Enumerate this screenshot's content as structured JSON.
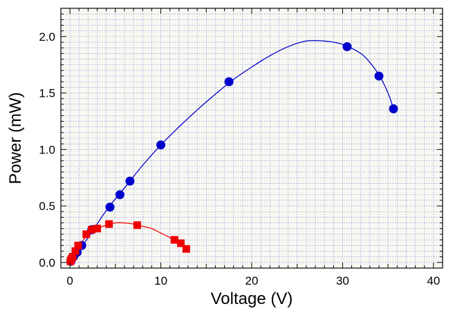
{
  "chart_data": {
    "type": "scatter",
    "title": "",
    "xlabel": "Voltage (V)",
    "ylabel": "Power (mW)",
    "xlim": [
      -1,
      41
    ],
    "ylim": [
      -0.05,
      2.25
    ],
    "xticks": [
      0,
      10,
      20,
      30,
      40
    ],
    "xtick_labels": [
      "0",
      "10",
      "20",
      "30",
      "40"
    ],
    "yticks": [
      0.0,
      0.5,
      1.0,
      1.5,
      2.0
    ],
    "ytick_labels": [
      "0.0",
      "0.5",
      "1.0",
      "1.5",
      "2.0"
    ],
    "grid": true,
    "minor_x_step": 1,
    "minor_y_step": 0.05,
    "series": [
      {
        "marker": "circle",
        "color": "#0000cc",
        "points": [
          [
            0.1,
            0.01
          ],
          [
            0.2,
            0.03
          ],
          [
            0.4,
            0.05
          ],
          [
            0.8,
            0.09
          ],
          [
            1.3,
            0.15
          ],
          [
            2.4,
            0.29
          ],
          [
            4.4,
            0.49
          ],
          [
            5.5,
            0.6
          ],
          [
            6.6,
            0.72
          ],
          [
            10.0,
            1.04
          ],
          [
            17.5,
            1.6
          ],
          [
            30.5,
            1.91
          ],
          [
            34.0,
            1.65
          ],
          [
            35.6,
            1.36
          ]
        ],
        "fit_curve": [
          [
            0,
            0
          ],
          [
            2,
            0.22
          ],
          [
            4,
            0.46
          ],
          [
            6,
            0.66
          ],
          [
            8,
            0.86
          ],
          [
            10,
            1.04
          ],
          [
            12,
            1.2
          ],
          [
            14,
            1.35
          ],
          [
            16,
            1.49
          ],
          [
            18,
            1.62
          ],
          [
            20,
            1.73
          ],
          [
            22,
            1.83
          ],
          [
            24,
            1.91
          ],
          [
            26,
            1.96
          ],
          [
            28,
            1.96
          ],
          [
            30,
            1.93
          ],
          [
            32,
            1.85
          ],
          [
            33,
            1.77
          ],
          [
            34,
            1.66
          ],
          [
            35,
            1.5
          ],
          [
            35.6,
            1.36
          ]
        ]
      },
      {
        "marker": "square",
        "color": "#ee0000",
        "points": [
          [
            0.05,
            0.01
          ],
          [
            0.15,
            0.03
          ],
          [
            0.3,
            0.05
          ],
          [
            0.6,
            0.1
          ],
          [
            0.9,
            0.15
          ],
          [
            1.8,
            0.25
          ],
          [
            2.4,
            0.29
          ],
          [
            3.0,
            0.3
          ],
          [
            4.3,
            0.34
          ],
          [
            7.4,
            0.33
          ],
          [
            11.5,
            0.2
          ],
          [
            12.2,
            0.17
          ],
          [
            12.8,
            0.12
          ]
        ],
        "fit_curve": [
          [
            0,
            0
          ],
          [
            0.5,
            0.08
          ],
          [
            1,
            0.15
          ],
          [
            1.5,
            0.2
          ],
          [
            2,
            0.25
          ],
          [
            3,
            0.3
          ],
          [
            4,
            0.33
          ],
          [
            5,
            0.35
          ],
          [
            6,
            0.35
          ],
          [
            7,
            0.34
          ],
          [
            8,
            0.32
          ],
          [
            9,
            0.3
          ],
          [
            10,
            0.26
          ],
          [
            11,
            0.22
          ],
          [
            12,
            0.17
          ],
          [
            12.8,
            0.12
          ]
        ]
      }
    ]
  }
}
